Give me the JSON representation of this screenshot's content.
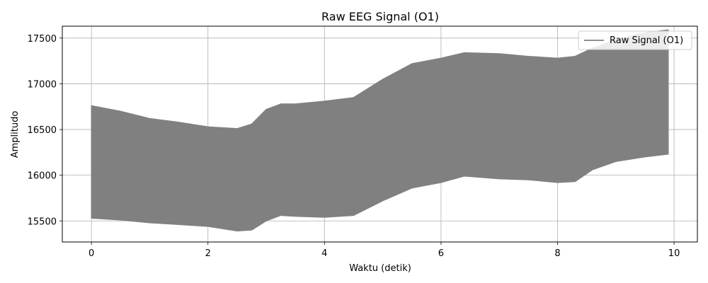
{
  "chart_data": {
    "type": "area",
    "title": "Raw EEG Signal (O1)",
    "xlabel": "Waktu (detik)",
    "ylabel": "Amplitudo",
    "xlim": [
      -0.5,
      10.4
    ],
    "ylim": [
      15270,
      17630
    ],
    "xticks": [
      0,
      2,
      4,
      6,
      8,
      10
    ],
    "yticks": [
      15500,
      16000,
      16500,
      17000,
      17500
    ],
    "grid": true,
    "legend_position": "top-right",
    "series": [
      {
        "name": "Raw Signal (O1)",
        "color": "#808080",
        "x": [
          0,
          0.5,
          1.0,
          1.5,
          2.0,
          2.5,
          2.75,
          3.0,
          3.25,
          3.5,
          4.0,
          4.5,
          5.0,
          5.5,
          6.0,
          6.4,
          7.0,
          7.5,
          8.0,
          8.3,
          8.6,
          9.0,
          9.5,
          9.9
        ],
        "upper": [
          16760,
          16700,
          16620,
          16580,
          16530,
          16510,
          16560,
          16720,
          16780,
          16780,
          16810,
          16850,
          17050,
          17220,
          17280,
          17340,
          17330,
          17300,
          17280,
          17300,
          17390,
          17480,
          17560,
          17590
        ],
        "lower": [
          15530,
          15510,
          15480,
          15460,
          15440,
          15390,
          15400,
          15500,
          15560,
          15550,
          15540,
          15560,
          15720,
          15860,
          15920,
          15990,
          15960,
          15950,
          15920,
          15930,
          16060,
          16150,
          16200,
          16230
        ]
      }
    ]
  }
}
